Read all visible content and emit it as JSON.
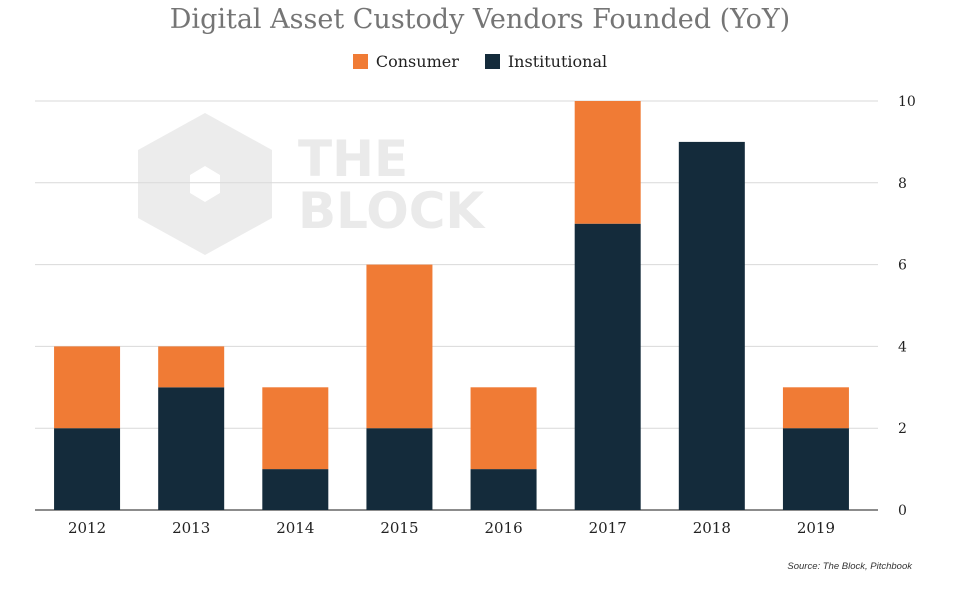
{
  "colors": {
    "consumer": "#F07B35",
    "institutional": "#142B3B",
    "grid": "#d9d9d9",
    "axis": "#666666"
  },
  "watermark": {
    "text_line1": "THE",
    "text_line2": "BLOCK"
  },
  "source_text": "Source: The Block, Pitchbook",
  "chart_data": {
    "type": "bar",
    "stacked": true,
    "title": "Digital Asset Custody Vendors Founded (YoY)",
    "xlabel": "",
    "ylabel": "",
    "categories": [
      "2012",
      "2013",
      "2014",
      "2015",
      "2016",
      "2017",
      "2018",
      "2019"
    ],
    "series": [
      {
        "name": "Institutional",
        "values": [
          2,
          3,
          1,
          2,
          1,
          7,
          9,
          2
        ]
      },
      {
        "name": "Consumer",
        "values": [
          2,
          1,
          2,
          4,
          2,
          3,
          0,
          1
        ]
      }
    ],
    "legend": [
      "Consumer",
      "Institutional"
    ],
    "ylim": [
      0,
      10
    ],
    "yticks": [
      0,
      2,
      4,
      6,
      8,
      10
    ],
    "y_axis_side": "right",
    "grid": true,
    "legend_position": "top-center"
  }
}
